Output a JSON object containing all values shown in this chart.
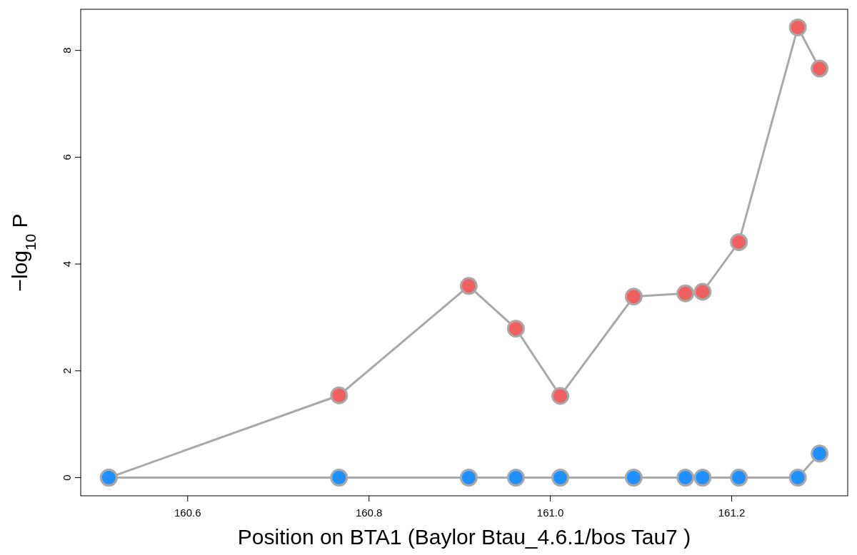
{
  "chart_data": {
    "type": "line",
    "xlabel": "Position on BTA1 (Baylor Btau_4.6.1/bos Tau7 )",
    "ylabel": "−log$_{10}$ P",
    "x": [
      160.513,
      160.767,
      160.91,
      160.962,
      161.011,
      161.092,
      161.149,
      161.168,
      161.208,
      161.273,
      161.297
    ],
    "series": [
      {
        "color": "#f06060",
        "values": [
          0,
          1.54,
          3.59,
          2.79,
          1.53,
          3.39,
          3.45,
          3.48,
          4.41,
          8.43,
          7.66
        ]
      },
      {
        "color": "#1e90ff",
        "values": [
          0,
          0,
          0,
          0,
          0,
          0,
          0,
          0,
          0,
          0,
          0.45
        ]
      }
    ],
    "xlim": [
      160.482,
      161.328
    ],
    "xticks": [
      160.6,
      160.8,
      {
        "value": 161,
        "label": "161.0"
      },
      161.2
    ],
    "ylim": [
      -0.34,
      8.77
    ],
    "yticks": [
      0,
      2,
      4,
      6,
      8
    ],
    "grid": false,
    "legend": false,
    "marker": "circle",
    "line_style": "solid"
  }
}
